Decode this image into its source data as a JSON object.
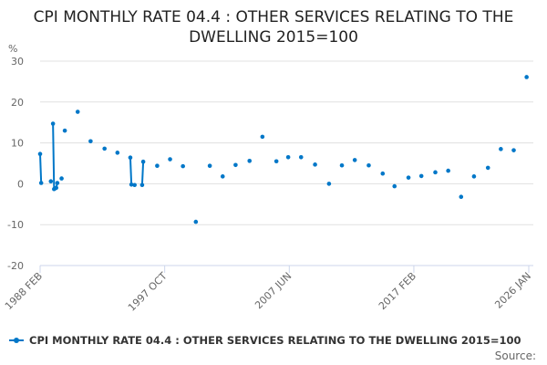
{
  "chart_data": {
    "type": "line",
    "title": "CPI MONTHLY RATE 04.4 : OTHER SERVICES RELATING TO THE DWELLING 2015=100",
    "ylabel": "%",
    "xlabel": "",
    "ylim": [
      -20,
      30
    ],
    "yticks": [
      30,
      20,
      10,
      0,
      -10,
      -20
    ],
    "xlim": [
      "1988-02",
      "2026-01"
    ],
    "xticks": [
      {
        "date": "1988-02",
        "label": "1988 FEB"
      },
      {
        "date": "1997-10",
        "label": "1997 OCT"
      },
      {
        "date": "2007-06",
        "label": "2007 JUN"
      },
      {
        "date": "2017-02",
        "label": "2017 FEB"
      },
      {
        "date": "2026-01",
        "label": "2026 JAN"
      }
    ],
    "grid": true,
    "legend_position": "bottom-left",
    "color": "#0077c8",
    "series": [
      {
        "name": "CPI MONTHLY RATE 04.4 : OTHER SERVICES RELATING TO THE DWELLING 2015=100",
        "points": [
          [
            "1988-02",
            7.3
          ],
          [
            "1988-03",
            0.2
          ],
          [
            "1988-12",
            0.6
          ],
          [
            "1989-02",
            14.7
          ],
          [
            "1989-03",
            -1.3
          ],
          [
            "1989-04",
            -1.1
          ],
          [
            "1989-05",
            -1.0
          ],
          [
            "1989-06",
            0.2
          ],
          [
            "1989-10",
            1.3
          ],
          [
            "1990-01",
            13.0
          ],
          [
            "1991-01",
            17.6
          ],
          [
            "1992-01",
            10.4
          ],
          [
            "1993-02",
            8.6
          ],
          [
            "1994-02",
            7.6
          ],
          [
            "1995-02",
            6.4
          ],
          [
            "1995-03",
            -0.2
          ],
          [
            "1995-06",
            -0.3
          ],
          [
            "1996-01",
            -0.3
          ],
          [
            "1996-02",
            5.4
          ],
          [
            "1997-03",
            4.4
          ],
          [
            "1998-03",
            6.0
          ],
          [
            "1999-03",
            4.3
          ],
          [
            "2000-03",
            -9.3
          ],
          [
            "2001-04",
            4.4
          ],
          [
            "2002-04",
            1.8
          ],
          [
            "2003-04",
            4.6
          ],
          [
            "2004-05",
            5.6
          ],
          [
            "2005-05",
            11.5
          ],
          [
            "2006-06",
            5.5
          ],
          [
            "2007-05",
            6.5
          ],
          [
            "2008-05",
            6.5
          ],
          [
            "2009-06",
            4.7
          ],
          [
            "2010-07",
            0.0
          ],
          [
            "2011-07",
            4.5
          ],
          [
            "2012-07",
            5.8
          ],
          [
            "2013-08",
            4.5
          ],
          [
            "2014-09",
            2.5
          ],
          [
            "2015-08",
            -0.6
          ],
          [
            "2016-09",
            1.5
          ],
          [
            "2017-09",
            1.9
          ],
          [
            "2018-10",
            2.8
          ],
          [
            "2019-10",
            3.2
          ],
          [
            "2020-10",
            -3.2
          ],
          [
            "2021-10",
            1.8
          ],
          [
            "2022-11",
            3.9
          ],
          [
            "2023-11",
            8.5
          ],
          [
            "2024-11",
            8.2
          ],
          [
            "2025-11",
            26.1
          ]
        ]
      }
    ]
  },
  "source_label": "Source:"
}
